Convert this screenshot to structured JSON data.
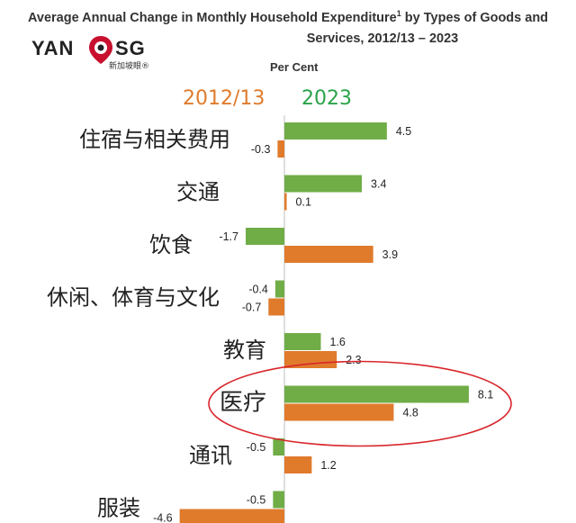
{
  "title_line1": "Average Annual Change in Monthly Household Expenditure",
  "title_sup": "1",
  "title_line1_tail": " by Types of Goods and",
  "title_line2": "Services, 2012/13 – 2023",
  "logo": {
    "text_left": "YAN",
    "text_right": "SG",
    "subtitle": "新加坡眼®"
  },
  "unit": "Per Cent",
  "colors": {
    "series_2012": "#e07b2c",
    "series_2023": "#70ad47",
    "highlight": "#d9262b"
  },
  "chart_data": {
    "type": "bar",
    "orientation": "horizontal",
    "categories": [
      "住宿与相关费用",
      "交通",
      "饮食",
      "休闲、体育与文化",
      "教育",
      "医疗",
      "通讯",
      "服装"
    ],
    "series": [
      {
        "name": "2023",
        "values": [
          4.5,
          3.4,
          -1.7,
          -0.4,
          1.6,
          8.1,
          -0.5,
          -0.5
        ]
      },
      {
        "name": "2012/13",
        "values": [
          -0.3,
          0.1,
          3.9,
          -0.7,
          2.3,
          4.8,
          1.2,
          -4.6
        ]
      }
    ],
    "value_labels_2023": [
      "4.5",
      "3.4",
      "-1.7",
      "-0.4",
      "1.6",
      "8.1",
      "-0.5",
      "-0.5"
    ],
    "value_labels_2012": [
      "-0.3",
      "0.1",
      "3.9",
      "-0.7",
      "2.3",
      "4.8",
      "1.2",
      "-4.6"
    ],
    "highlighted_category": "医疗",
    "legend_placement": "top"
  }
}
